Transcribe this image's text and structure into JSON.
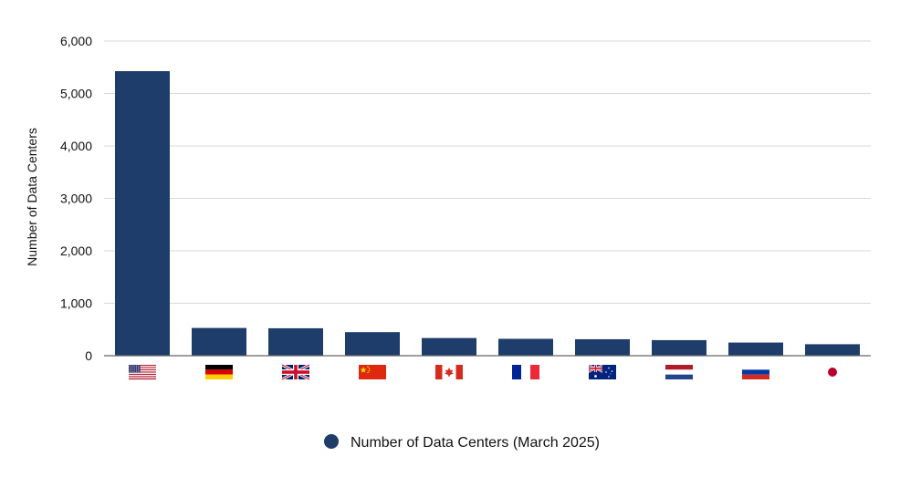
{
  "chart_data": {
    "type": "bar",
    "categories": [
      "us-flag",
      "germany-flag",
      "uk-flag",
      "china-flag",
      "canada-flag",
      "france-flag",
      "australia-flag",
      "netherlands-flag",
      "russia-flag",
      "japan-flag"
    ],
    "series": [
      {
        "name": "Number of Data Centers (March 2025)",
        "values": [
          5426,
          529,
          523,
          449,
          337,
          322,
          314,
          297,
          251,
          219
        ]
      }
    ],
    "ylabel": "Number of Data Centers",
    "xlabel": "",
    "ylim": [
      0,
      6000
    ],
    "yticks": [
      0,
      1000,
      2000,
      3000,
      4000,
      5000,
      6000
    ],
    "ytick_labels": [
      "0",
      "1,000",
      "2,000",
      "3,000",
      "4,000",
      "5,000",
      "6,000"
    ],
    "grid": true,
    "legend_position": "bottom-center",
    "bar_color": "#1e3d6b",
    "grid_color": "#d9d9d9",
    "axis_color": "#666666"
  }
}
